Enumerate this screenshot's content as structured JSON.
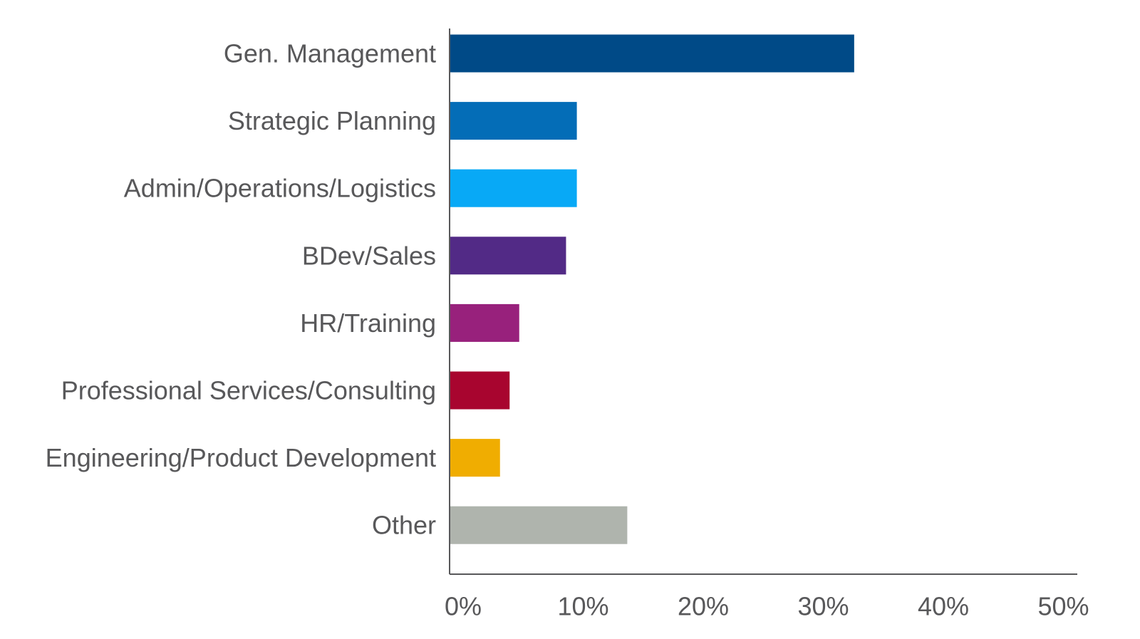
{
  "chart_data": {
    "type": "bar",
    "orientation": "horizontal",
    "categories": [
      "Gen. Management",
      "Strategic Planning",
      "Admin/Operations/Logistics",
      "BDev/Sales",
      "HR/Training",
      "Professional Services/Consulting",
      "Engineering/Product Development",
      "Other"
    ],
    "values": [
      33.7,
      10.6,
      10.6,
      9.7,
      5.8,
      5.0,
      4.2,
      14.8
    ],
    "colors": [
      "#004a87",
      "#046db7",
      "#08a9f6",
      "#522a86",
      "#98217c",
      "#a8052f",
      "#f0ad01",
      "#afb4ad"
    ],
    "xlim": [
      0,
      50
    ],
    "xticks": [
      0,
      10,
      20,
      30,
      40,
      50
    ],
    "tick_labels": [
      "0%",
      "10%",
      "20%",
      "30%",
      "40%",
      "50%"
    ],
    "title": "",
    "xlabel": "",
    "ylabel": "",
    "grid": false,
    "legend": "none",
    "axis_color": "#58585a",
    "text_color": "#58585a"
  }
}
